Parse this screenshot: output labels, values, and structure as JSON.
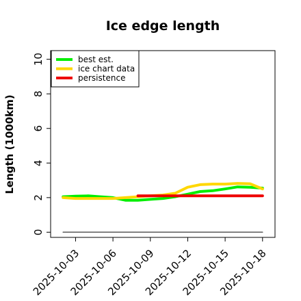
{
  "chart_data": {
    "type": "line",
    "title": "Ice edge length",
    "xlabel": "",
    "ylabel": "Length (1000km)",
    "ylim": [
      -0.3,
      10.5
    ],
    "xlim": [
      "2025-10-01",
      "2025-10-19"
    ],
    "yticks": [
      0,
      2,
      4,
      6,
      8,
      10
    ],
    "xticks": [
      "2025-10-03",
      "2025-10-06",
      "2025-10-09",
      "2025-10-12",
      "2025-10-15",
      "2025-10-18"
    ],
    "grid": false,
    "legend_position": "top-left",
    "series": [
      {
        "name": "best est.",
        "color": "#00ee00",
        "x": [
          "2025-10-02",
          "2025-10-03",
          "2025-10-04",
          "2025-10-05",
          "2025-10-06",
          "2025-10-07",
          "2025-10-08",
          "2025-10-09",
          "2025-10-10",
          "2025-10-11",
          "2025-10-12",
          "2025-10-13",
          "2025-10-14",
          "2025-10-15",
          "2025-10-16",
          "2025-10-17",
          "2025-10-18"
        ],
        "values": [
          2.05,
          2.08,
          2.1,
          2.05,
          2.0,
          1.85,
          1.85,
          1.9,
          1.95,
          2.05,
          2.2,
          2.35,
          2.4,
          2.5,
          2.62,
          2.6,
          2.55
        ]
      },
      {
        "name": "ice chart data",
        "color": "#ffd700",
        "x": [
          "2025-10-02",
          "2025-10-03",
          "2025-10-04",
          "2025-10-05",
          "2025-10-06",
          "2025-10-07",
          "2025-10-08",
          "2025-10-09",
          "2025-10-10",
          "2025-10-11",
          "2025-10-12",
          "2025-10-13",
          "2025-10-14",
          "2025-10-15",
          "2025-10-16",
          "2025-10-17",
          "2025-10-18"
        ],
        "values": [
          2.0,
          1.95,
          1.95,
          1.95,
          1.95,
          2.0,
          2.05,
          2.1,
          2.15,
          2.25,
          2.6,
          2.75,
          2.78,
          2.78,
          2.82,
          2.8,
          2.5
        ]
      },
      {
        "name": "persistence",
        "color": "#ee0000",
        "x": [
          "2025-10-08",
          "2025-10-09",
          "2025-10-10",
          "2025-10-11",
          "2025-10-12",
          "2025-10-13",
          "2025-10-14",
          "2025-10-15",
          "2025-10-16",
          "2025-10-17",
          "2025-10-18"
        ],
        "values": [
          2.1,
          2.1,
          2.1,
          2.1,
          2.1,
          2.1,
          2.1,
          2.1,
          2.1,
          2.1,
          2.1
        ]
      },
      {
        "name": "",
        "color": "#555555",
        "x": [
          "2025-10-02",
          "2025-10-18"
        ],
        "values": [
          0,
          0
        ]
      }
    ]
  }
}
